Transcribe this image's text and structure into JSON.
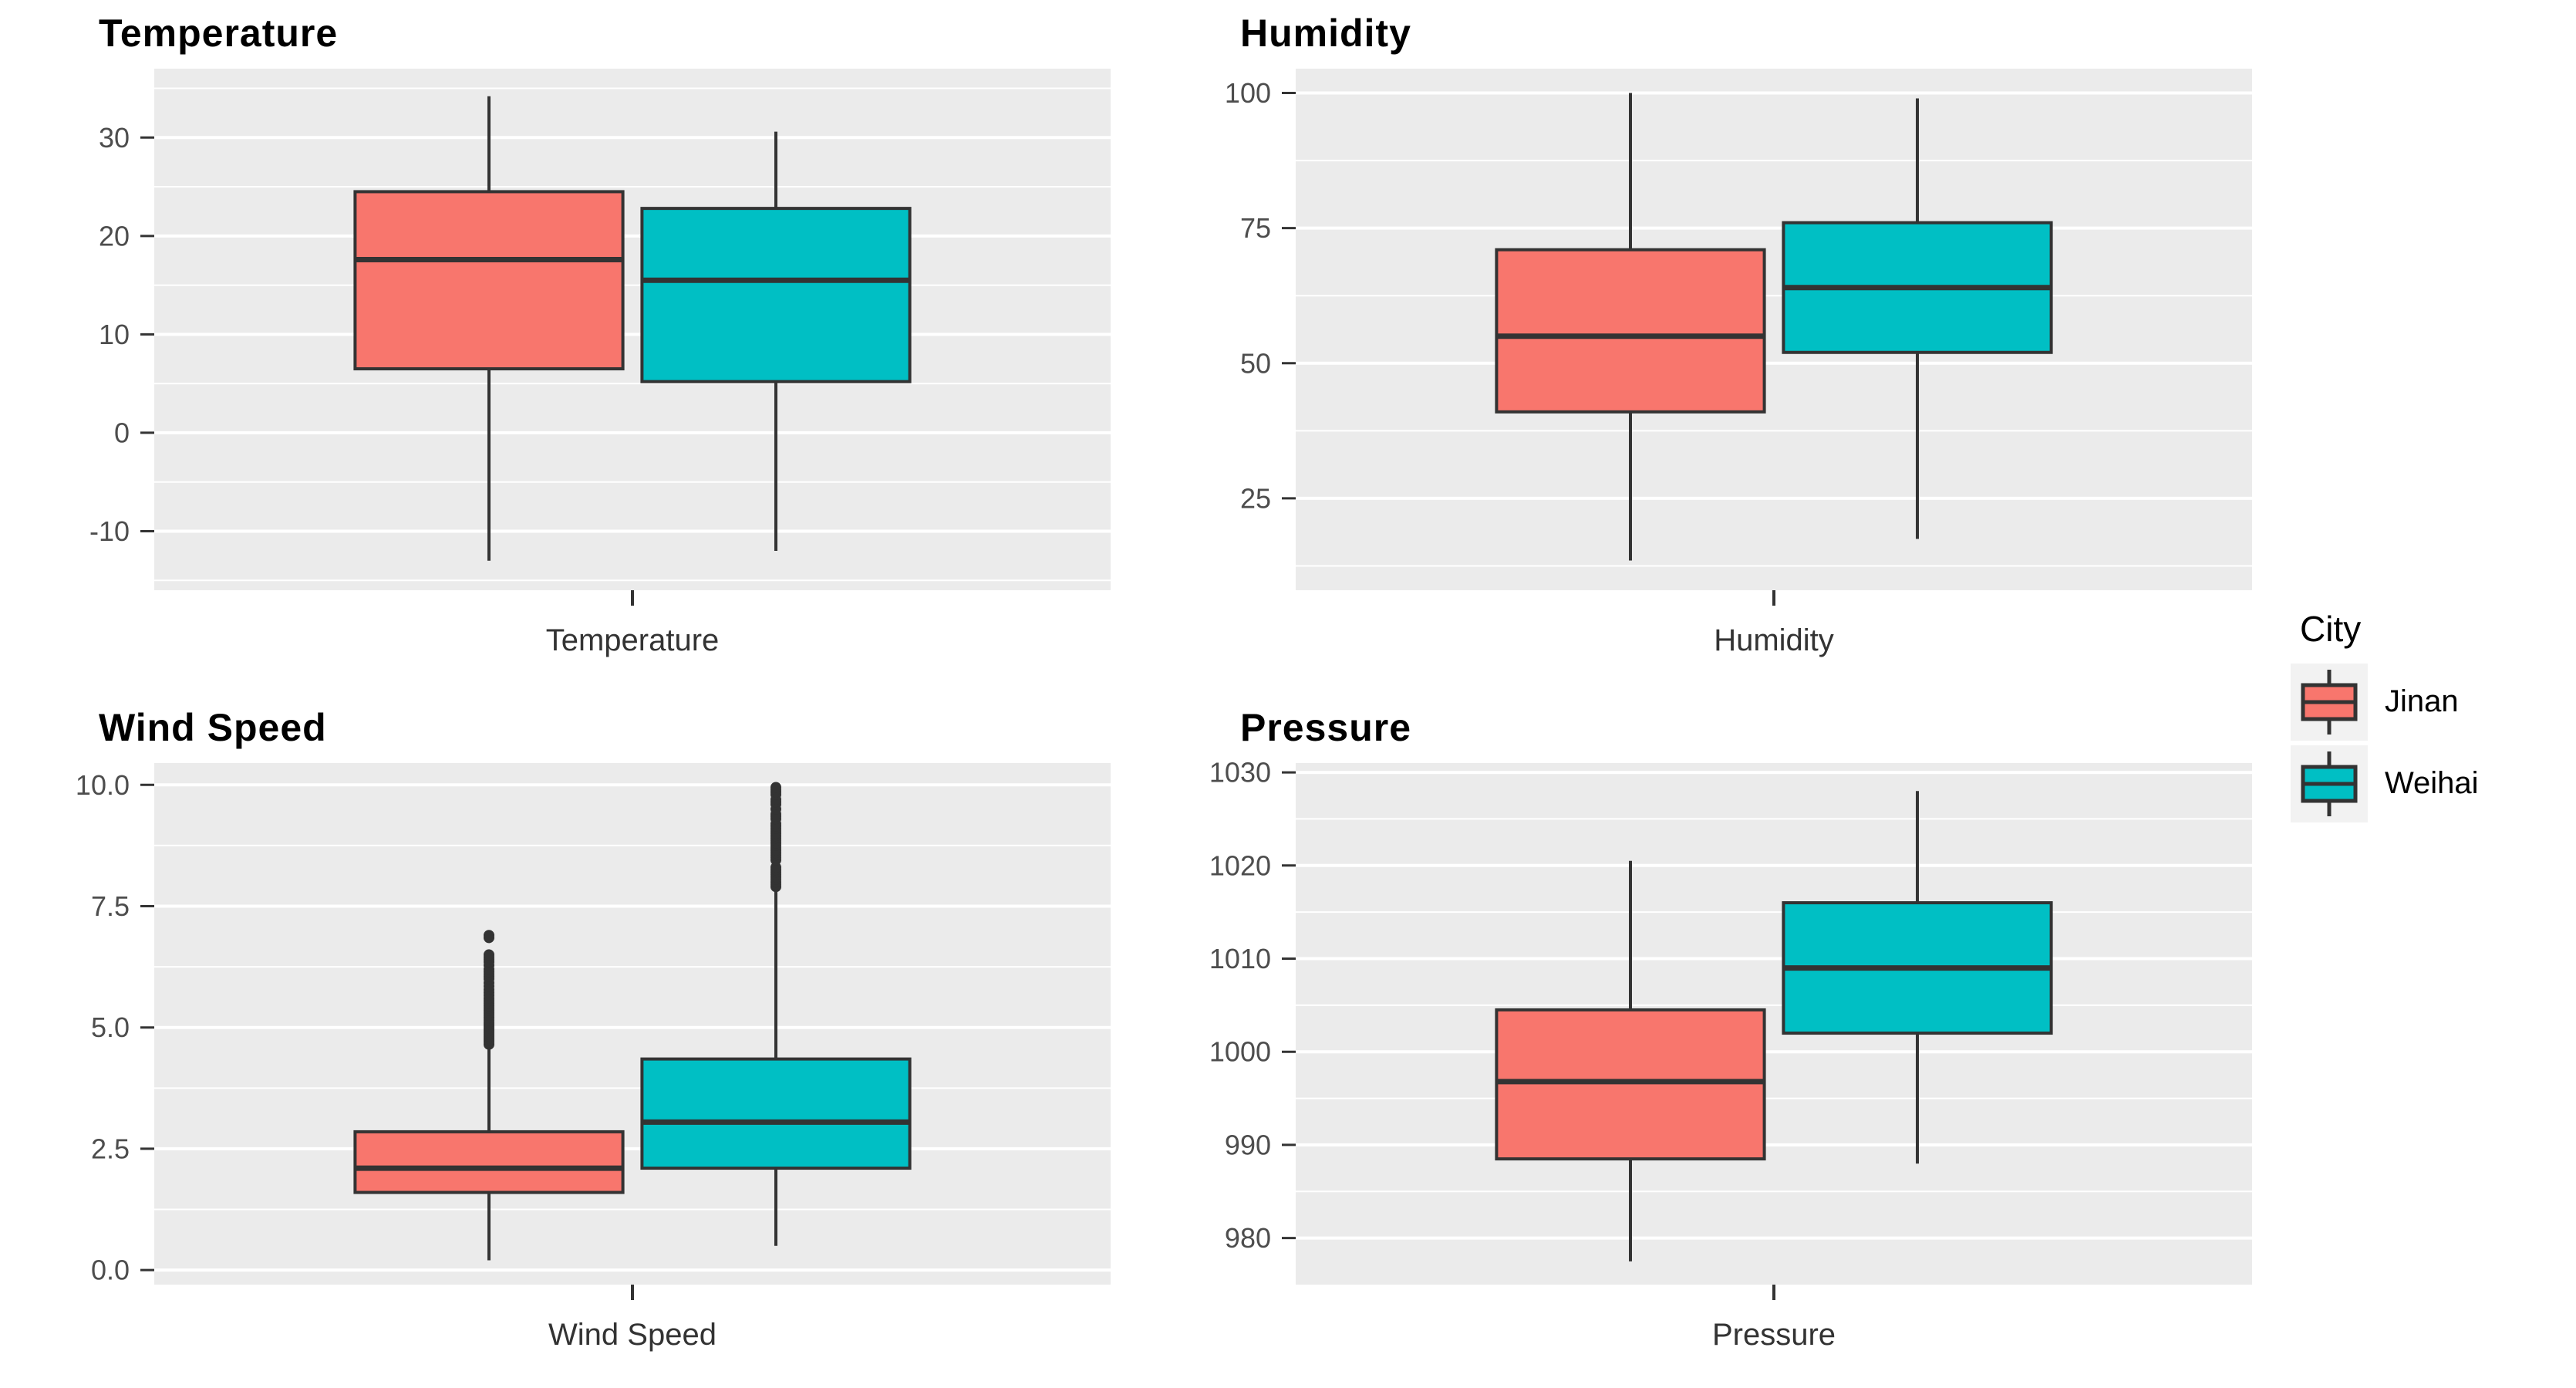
{
  "figure": {
    "background": "#FFFFFF",
    "panel_background": "#EBEBEB",
    "gridline_color": "#FFFFFF",
    "box_outline_color": "#333333",
    "tick_label_color": "#4D4D4D",
    "axis_label_color": "#333333",
    "title_color": "#000000"
  },
  "legend": {
    "title": "City",
    "key_background": "#F2F2F2",
    "items": [
      {
        "label": "Jinan",
        "color": "#F8766D"
      },
      {
        "label": "Weihai",
        "color": "#00BFC4"
      }
    ]
  },
  "chart_data": [
    {
      "type": "boxplot",
      "title": "Temperature",
      "xlabel": "Temperature",
      "legend_title": "City",
      "grid": true,
      "ylim": [
        -16,
        37
      ],
      "yticks": [
        -10,
        0,
        10,
        20,
        30
      ],
      "ytick_labels": [
        "-10",
        "0",
        "10",
        "20",
        "30"
      ],
      "yminor": [
        -15,
        -5,
        5,
        15,
        25,
        35
      ],
      "series": [
        {
          "name": "Jinan",
          "color": "#F8766D",
          "whisker_low": -13,
          "q1": 6.5,
          "median": 17.6,
          "q3": 24.5,
          "whisker_high": 34.2,
          "outliers": []
        },
        {
          "name": "Weihai",
          "color": "#00BFC4",
          "whisker_low": -12,
          "q1": 5.2,
          "median": 15.5,
          "q3": 22.8,
          "whisker_high": 30.6,
          "outliers": []
        }
      ]
    },
    {
      "type": "boxplot",
      "title": "Humidity",
      "xlabel": "Humidity",
      "legend_title": "City",
      "grid": true,
      "ylim": [
        8,
        104.5
      ],
      "yticks": [
        25,
        50,
        75,
        100
      ],
      "ytick_labels": [
        "25",
        "50",
        "75",
        "100"
      ],
      "yminor": [
        12.5,
        37.5,
        62.5,
        87.5
      ],
      "series": [
        {
          "name": "Jinan",
          "color": "#F8766D",
          "whisker_low": 13.5,
          "q1": 41,
          "median": 55,
          "q3": 71,
          "whisker_high": 100,
          "outliers": []
        },
        {
          "name": "Weihai",
          "color": "#00BFC4",
          "whisker_low": 17.5,
          "q1": 52,
          "median": 64,
          "q3": 76,
          "whisker_high": 99,
          "outliers": []
        }
      ]
    },
    {
      "type": "boxplot",
      "title": "Wind Speed",
      "xlabel": "Wind Speed",
      "legend_title": "City",
      "grid": true,
      "ylim": [
        -0.3,
        10.45
      ],
      "yticks": [
        0,
        2.5,
        5,
        7.5,
        10
      ],
      "ytick_labels": [
        "0.0",
        "2.5",
        "5.0",
        "7.5",
        "10.0"
      ],
      "yminor": [
        1.25,
        3.75,
        6.25,
        8.75
      ],
      "series": [
        {
          "name": "Jinan",
          "color": "#F8766D",
          "whisker_low": 0.2,
          "q1": 1.6,
          "median": 2.1,
          "q3": 2.85,
          "whisker_high": 4.55,
          "outliers": [
            4.65,
            4.7,
            4.74,
            4.78,
            4.82,
            4.86,
            4.9,
            4.94,
            4.98,
            5.02,
            5.06,
            5.1,
            5.15,
            5.2,
            5.25,
            5.3,
            5.35,
            5.4,
            5.45,
            5.5,
            5.55,
            5.6,
            5.66,
            5.72,
            5.78,
            5.85,
            5.92,
            6.0,
            6.05,
            6.1,
            6.15,
            6.2,
            6.28,
            6.35,
            6.4,
            6.45,
            6.5,
            6.85,
            6.9
          ]
        },
        {
          "name": "Weihai",
          "color": "#00BFC4",
          "whisker_low": 0.5,
          "q1": 2.1,
          "median": 3.05,
          "q3": 4.35,
          "whisker_high": 7.8,
          "outliers": [
            7.9,
            7.95,
            8.0,
            8.05,
            8.1,
            8.15,
            8.2,
            8.25,
            8.3,
            8.45,
            8.5,
            8.55,
            8.6,
            8.65,
            8.7,
            8.75,
            8.8,
            8.85,
            8.9,
            8.95,
            9.0,
            9.05,
            9.1,
            9.15,
            9.2,
            9.3,
            9.35,
            9.4,
            9.5,
            9.6,
            9.65,
            9.7,
            9.8,
            9.85,
            9.9,
            9.95
          ]
        }
      ]
    },
    {
      "type": "boxplot",
      "title": "Pressure",
      "xlabel": "Pressure",
      "legend_title": "City",
      "grid": true,
      "ylim": [
        975,
        1031
      ],
      "yticks": [
        980,
        990,
        1000,
        1010,
        1020,
        1030
      ],
      "ytick_labels": [
        "980",
        "990",
        "1000",
        "1010",
        "1020",
        "1030"
      ],
      "yminor": [
        975,
        985,
        995,
        1005,
        1015,
        1025
      ],
      "series": [
        {
          "name": "Jinan",
          "color": "#F8766D",
          "whisker_low": 977.5,
          "q1": 988.5,
          "median": 996.8,
          "q3": 1004.5,
          "whisker_high": 1020.5,
          "outliers": []
        },
        {
          "name": "Weihai",
          "color": "#00BFC4",
          "whisker_low": 988,
          "q1": 1002,
          "median": 1009,
          "q3": 1016,
          "whisker_high": 1028,
          "outliers": []
        }
      ]
    }
  ]
}
